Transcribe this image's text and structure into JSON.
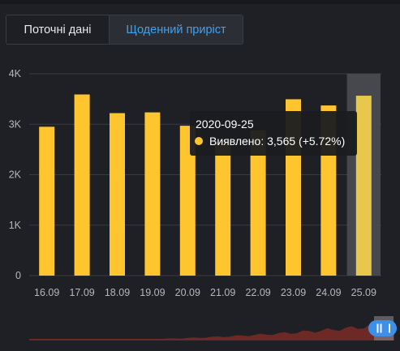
{
  "tabs": {
    "current": "Поточні дані",
    "daily": "Щоденний приріст"
  },
  "colors": {
    "bar": "#fec52f",
    "bar_highlight": "#e7c84c",
    "active_tab_text": "#3fa2f0",
    "navigator_area": "#7a2b26",
    "navigator_handle": "#3d8fe8"
  },
  "chart_data": {
    "type": "bar",
    "categories": [
      "16.09",
      "17.09",
      "18.09",
      "19.09",
      "20.09",
      "21.09",
      "22.09",
      "23.09",
      "24.09",
      "25.09"
    ],
    "series": [
      {
        "name": "Виявлено",
        "values": [
          2950,
          3590,
          3220,
          3235,
          2970,
          2660,
          2880,
          3495,
          3372,
          3565
        ]
      }
    ],
    "ylim": [
      0,
      4000
    ],
    "yticks": [
      0,
      1000,
      2000,
      3000,
      4000
    ],
    "ytick_labels": [
      "0",
      "1K",
      "2K",
      "3K",
      "4K"
    ],
    "grid": true,
    "highlighted_index": 9,
    "tooltip": {
      "title": "2020-09-25",
      "text": "Виявлено: 3,565 (+5.72%)"
    }
  }
}
